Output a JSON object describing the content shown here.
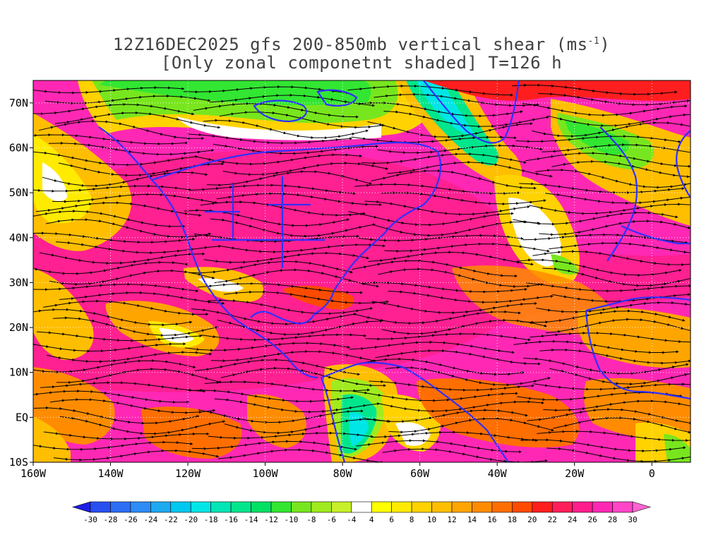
{
  "title": {
    "line1_prefix": "12Z16DEC2025 gfs 200-850mb vertical shear (ms",
    "line1_sup": "-1",
    "line1_suffix": ")",
    "line2": "[Only zonal componetnt shaded] T=126 h"
  },
  "map": {
    "lon_range": [
      -160,
      10
    ],
    "lat_range": [
      -10,
      75
    ],
    "x_ticks": [
      {
        "lon": -160,
        "label": "160W"
      },
      {
        "lon": -140,
        "label": "140W"
      },
      {
        "lon": -120,
        "label": "120W"
      },
      {
        "lon": -100,
        "label": "100W"
      },
      {
        "lon": -80,
        "label": "80W"
      },
      {
        "lon": -60,
        "label": "60W"
      },
      {
        "lon": -40,
        "label": "40W"
      },
      {
        "lon": -20,
        "label": "20W"
      },
      {
        "lon": 0,
        "label": "0"
      }
    ],
    "y_ticks": [
      {
        "lat": 70,
        "label": "70N"
      },
      {
        "lat": 60,
        "label": "60N"
      },
      {
        "lat": 50,
        "label": "50N"
      },
      {
        "lat": 40,
        "label": "40N"
      },
      {
        "lat": 30,
        "label": "30N"
      },
      {
        "lat": 20,
        "label": "20N"
      },
      {
        "lat": 10,
        "label": "10N"
      },
      {
        "lat": 0,
        "label": "EQ"
      },
      {
        "lat": -10,
        "label": "10S"
      }
    ],
    "field": "zonal component of 200-850mb vertical shear",
    "coastline_color": "#3030ff",
    "streamline_color": "#000000"
  },
  "colorbar": {
    "labels": [
      "-30",
      "-28",
      "-26",
      "-24",
      "-22",
      "-20",
      "-18",
      "-16",
      "-14",
      "-12",
      "-10",
      "-8",
      "-6",
      "-4",
      "4",
      "6",
      "8",
      "10",
      "12",
      "14",
      "16",
      "18",
      "20",
      "22",
      "24",
      "26",
      "28",
      "30"
    ],
    "colors": [
      "#1e1ee6",
      "#2850f0",
      "#2d6ef5",
      "#2d8cf5",
      "#1eaaf0",
      "#00c8f0",
      "#00e6e6",
      "#00e6b4",
      "#00e68c",
      "#00e164",
      "#32e632",
      "#78e61e",
      "#a0eb1e",
      "#c8f028",
      "#ffffff",
      "#ffff00",
      "#ffeb00",
      "#ffd200",
      "#ffbe00",
      "#ffa500",
      "#ff8c00",
      "#ff6e00",
      "#ff4b00",
      "#ff1e1e",
      "#ff1e5a",
      "#ff1e8c",
      "#ff28b4",
      "#ff46c8",
      "#ff64d2"
    ]
  }
}
